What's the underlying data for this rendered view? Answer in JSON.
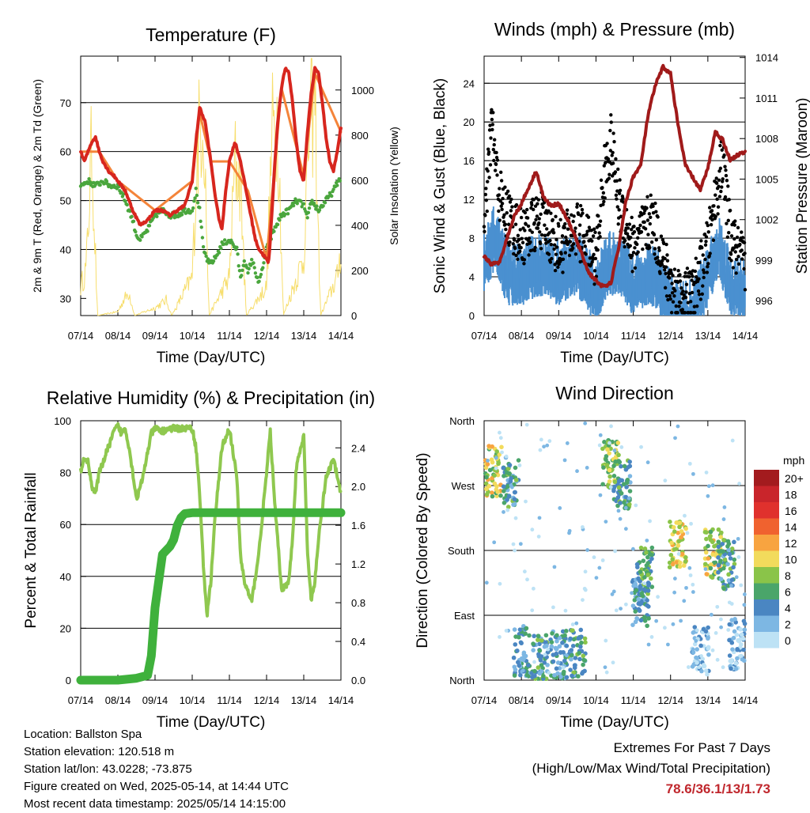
{
  "chart_data": [
    {
      "type": "line",
      "title": "Temperature (F)",
      "xlabel": "Time (Day/UTC)",
      "ylabel": "2m & 9m T (Red, Orange) & 2m Td (Green)",
      "ylabel_right": "Solar Insolation (Yellow)",
      "x_ticks": [
        "07/14",
        "08/14",
        "09/14",
        "10/14",
        "11/14",
        "12/14",
        "13/14",
        "14/14"
      ],
      "y_ticks": [
        30,
        40,
        50,
        60,
        70
      ],
      "y_right_ticks": [
        0,
        200,
        400,
        600,
        800,
        1000
      ],
      "ylim": [
        26.5,
        79.5
      ],
      "ylim_right": [
        0,
        1150
      ],
      "grid": true,
      "colors": {
        "temp": "#d7261e",
        "temp9m": "#f4843a",
        "dewpoint": "#4aa63d",
        "solar": "#f7de6d"
      },
      "series": [
        {
          "name": "2m T",
          "x": [
            0,
            0.1,
            0.2,
            0.3,
            0.4,
            0.5,
            0.6,
            0.75,
            0.9,
            1.0,
            1.2,
            1.4,
            1.6,
            1.8,
            2.0,
            2.2,
            2.4,
            2.6,
            2.8,
            3.0,
            3.1,
            3.2,
            3.35,
            3.5,
            3.6,
            3.7,
            3.8,
            3.9,
            4.0,
            4.15,
            4.3,
            4.4,
            4.5,
            4.6,
            4.7,
            4.8,
            4.9,
            5.0,
            5.05,
            5.1,
            5.2,
            5.3,
            5.4,
            5.5,
            5.6,
            5.7,
            5.8,
            5.9,
            6.0,
            6.1,
            6.2,
            6.3,
            6.4,
            6.5,
            6.6,
            6.7,
            6.8,
            6.9,
            7.0
          ],
          "y": [
            60,
            58,
            60,
            62,
            63,
            60,
            58,
            56,
            55,
            54,
            52,
            48,
            45,
            46,
            48,
            48,
            47,
            48,
            49,
            54,
            62,
            69,
            66,
            58,
            52,
            47,
            44,
            52,
            58,
            62,
            58,
            54,
            50,
            46,
            42,
            40,
            39,
            38,
            37,
            42,
            55,
            66,
            73,
            77,
            76,
            70,
            62,
            56,
            54,
            64,
            72,
            77,
            76,
            70,
            63,
            58,
            56,
            60,
            65
          ]
        },
        {
          "name": "9m T",
          "x": [
            0,
            0.5,
            1.0,
            2.0,
            3.0,
            3.2,
            3.5,
            4.0,
            4.5,
            5.0,
            5.4,
            6.0,
            6.3,
            7.0
          ],
          "y": [
            60,
            60,
            54,
            48,
            54,
            68,
            58,
            58,
            52,
            38,
            73,
            55,
            76,
            64
          ]
        },
        {
          "name": "2m Td",
          "x": [
            0,
            0.2,
            0.4,
            0.6,
            0.8,
            1.0,
            1.2,
            1.4,
            1.5,
            1.6,
            1.8,
            2.0,
            2.2,
            2.4,
            2.6,
            2.8,
            3.0,
            3.1,
            3.2,
            3.3,
            3.45,
            3.6,
            3.8,
            4.0,
            4.2,
            4.3,
            4.4,
            4.5,
            4.6,
            4.8,
            5.0,
            5.2,
            5.4,
            5.6,
            5.8,
            6.0,
            6.1,
            6.2,
            6.4,
            6.6,
            6.8,
            7.0
          ],
          "y": [
            53,
            54,
            53,
            54,
            53,
            53,
            50,
            46,
            43,
            42,
            44,
            47,
            48,
            47,
            47,
            48,
            48,
            52,
            48,
            40,
            37,
            38,
            41,
            42,
            40,
            34,
            38,
            35,
            38,
            33,
            40,
            44,
            47,
            48,
            50,
            49,
            46,
            50,
            48,
            50,
            52,
            55
          ]
        },
        {
          "name": "Solar",
          "axis": "right",
          "x": [
            0,
            0.15,
            0.3,
            0.45,
            1.0,
            1.15,
            1.3,
            1.45,
            2.0,
            2.15,
            2.3,
            2.45,
            3.0,
            3.15,
            3.3,
            3.45,
            4.0,
            4.15,
            4.3,
            4.45,
            5.0,
            5.15,
            5.3,
            5.45,
            6.0,
            6.15,
            6.3,
            6.45,
            6.9,
            7.0
          ],
          "y": [
            150,
            250,
            900,
            0,
            20,
            80,
            120,
            0,
            40,
            60,
            80,
            0,
            200,
            900,
            1100,
            0,
            200,
            800,
            700,
            0,
            150,
            950,
            1050,
            0,
            300,
            1000,
            1120,
            0,
            200,
            350
          ]
        }
      ]
    },
    {
      "type": "scatter",
      "title": "Winds (mph) & Pressure (mb)",
      "xlabel": "Time (Day/UTC)",
      "ylabel": "Sonic Wind & Gust (Blue, Black)",
      "ylabel_right": "Station Pressure (Maroon)",
      "x_ticks": [
        "07/14",
        "08/14",
        "09/14",
        "10/14",
        "11/14",
        "12/14",
        "13/14",
        "14/14"
      ],
      "y_ticks": [
        0,
        4,
        8,
        12,
        16,
        20,
        24
      ],
      "y_right_ticks": [
        996,
        999,
        1002,
        1005,
        1008,
        1011,
        1014
      ],
      "ylim": [
        0,
        26.8
      ],
      "ylim_right": [
        994.9,
        1014.1
      ],
      "grid": true,
      "colors": {
        "wind": "#4a90d0",
        "gust": "#000000",
        "pressure": "#a01a1a"
      },
      "series": [
        {
          "name": "Sonic Wind",
          "x": [
            0,
            0.3,
            0.6,
            1.0,
            1.5,
            2.0,
            2.5,
            3.0,
            3.3,
            3.6,
            4.0,
            4.5,
            5.0,
            5.3,
            5.6,
            6.0,
            6.3,
            6.6,
            7.0
          ],
          "y": [
            6,
            9,
            5,
            5,
            6,
            5,
            6,
            3,
            6,
            6,
            4,
            5,
            2,
            1,
            1,
            5,
            8,
            4,
            3
          ]
        },
        {
          "name": "Gust",
          "x": [
            0,
            0.2,
            0.35,
            0.5,
            1.0,
            1.5,
            2.0,
            2.5,
            3.0,
            3.2,
            3.4,
            3.6,
            4.0,
            4.5,
            5.0,
            5.3,
            5.6,
            6.0,
            6.2,
            6.4,
            6.6,
            7.0
          ],
          "y": [
            8,
            20,
            14,
            11,
            8,
            10,
            7,
            9,
            6,
            14,
            18,
            12,
            7,
            10,
            3,
            2,
            2,
            7,
            12,
            16,
            8,
            5
          ]
        },
        {
          "name": "Station Pressure",
          "axis": "right",
          "x": [
            0,
            0.2,
            0.4,
            0.6,
            0.8,
            1.0,
            1.2,
            1.4,
            1.6,
            1.8,
            2.0,
            2.2,
            2.4,
            2.6,
            2.8,
            3.0,
            3.2,
            3.4,
            3.6,
            3.8,
            4.0,
            4.2,
            4.4,
            4.6,
            4.8,
            5.0,
            5.2,
            5.4,
            5.6,
            5.8,
            6.0,
            6.2,
            6.4,
            6.6,
            6.8,
            7.0
          ],
          "y": [
            999.3,
            998.7,
            998.8,
            1000.5,
            1002.2,
            1003.2,
            1004.4,
            1005.6,
            1003.6,
            1003.0,
            1003.2,
            1002.2,
            1001.0,
            999.6,
            998.1,
            997.5,
            997.0,
            997.3,
            999.8,
            1003.3,
            1005.2,
            1006.0,
            1009.8,
            1012.0,
            1013.3,
            1012.8,
            1009.0,
            1006.0,
            1005.1,
            1004.2,
            1005.8,
            1008.5,
            1007.9,
            1006.4,
            1006.8,
            1007.0
          ]
        }
      ]
    },
    {
      "type": "line",
      "title": "Relative Humidity (%) & Precipitation (in)",
      "xlabel": "Time (Day/UTC)",
      "ylabel": "Percent & Total Rainfall",
      "x_ticks": [
        "07/14",
        "08/14",
        "09/14",
        "10/14",
        "11/14",
        "12/14",
        "13/14",
        "14/14"
      ],
      "y_ticks": [
        0,
        20,
        40,
        60,
        80,
        100
      ],
      "y_right_ticks": [
        "0.0",
        "0.4",
        "0.8",
        "1.2",
        "1.6",
        "2.0",
        "2.4"
      ],
      "ylim": [
        0,
        100
      ],
      "ylim_right": [
        0,
        2.68
      ],
      "grid": true,
      "colors": {
        "rh": "#8fc84f",
        "precip": "#3fb13c"
      },
      "series": [
        {
          "name": "Relative Humidity",
          "x": [
            0,
            0.1,
            0.2,
            0.3,
            0.4,
            0.5,
            0.7,
            0.9,
            1.0,
            1.1,
            1.2,
            1.3,
            1.4,
            1.5,
            1.6,
            1.7,
            1.8,
            1.9,
            2.0,
            2.2,
            2.4,
            2.6,
            2.8,
            3.0,
            3.1,
            3.2,
            3.3,
            3.4,
            3.5,
            3.6,
            3.8,
            4.0,
            4.2,
            4.3,
            4.4,
            4.6,
            4.8,
            5.0,
            5.1,
            5.2,
            5.4,
            5.6,
            5.7,
            5.8,
            6.0,
            6.1,
            6.2,
            6.3,
            6.4,
            6.6,
            6.8,
            7.0
          ],
          "y": [
            80,
            86,
            84,
            75,
            72,
            80,
            88,
            96,
            98,
            95,
            97,
            90,
            80,
            70,
            74,
            80,
            88,
            95,
            97,
            96,
            97,
            97,
            97,
            97,
            90,
            72,
            44,
            25,
            38,
            60,
            90,
            97,
            78,
            48,
            38,
            30,
            50,
            80,
            96,
            72,
            35,
            38,
            55,
            82,
            94,
            50,
            30,
            38,
            55,
            78,
            85,
            72
          ]
        },
        {
          "name": "Total Rainfall",
          "axis": "right",
          "x": [
            0,
            1.0,
            1.5,
            1.8,
            1.9,
            2.0,
            2.2,
            2.4,
            2.5,
            2.6,
            2.7,
            2.8,
            3.0,
            4.0,
            5.0,
            6.0,
            7.0
          ],
          "y": [
            0.0,
            0.0,
            0.02,
            0.05,
            0.25,
            0.75,
            1.3,
            1.38,
            1.45,
            1.6,
            1.68,
            1.72,
            1.73,
            1.73,
            1.73,
            1.73,
            1.73
          ]
        }
      ]
    },
    {
      "type": "scatter",
      "title": "Wind Direction",
      "xlabel": "Time (Day/UTC)",
      "ylabel": "Direction (Colored By Speed)",
      "x_ticks": [
        "07/14",
        "08/14",
        "09/14",
        "10/14",
        "11/14",
        "12/14",
        "13/14",
        "14/14"
      ],
      "y_ticks": [
        "North",
        "East",
        "South",
        "West",
        "North"
      ],
      "ylim": [
        0,
        360
      ],
      "grid": true,
      "legend": {
        "title": "mph",
        "placement": "right",
        "labels": [
          "20+",
          "18",
          "16",
          "14",
          "12",
          "10",
          "8",
          "6",
          "4",
          "2",
          "0"
        ],
        "colors": [
          "#a31b1e",
          "#c9252b",
          "#e0312d",
          "#f0622f",
          "#f8a440",
          "#f2db5c",
          "#8ac449",
          "#4aa56a",
          "#4a86c2",
          "#7db7e3",
          "#bde2f5"
        ]
      },
      "clusters": [
        {
          "x": 0.25,
          "dir": 290,
          "speed": 9
        },
        {
          "x": 0.7,
          "dir": 275,
          "speed": 5
        },
        {
          "x": 1.0,
          "dir": 40,
          "speed": 4
        },
        {
          "x": 1.5,
          "dir": 30,
          "speed": 5
        },
        {
          "x": 2.0,
          "dir": 35,
          "speed": 4
        },
        {
          "x": 2.5,
          "dir": 35,
          "speed": 5
        },
        {
          "x": 3.4,
          "dir": 300,
          "speed": 8
        },
        {
          "x": 3.7,
          "dir": 270,
          "speed": 5
        },
        {
          "x": 4.2,
          "dir": 110,
          "speed": 4
        },
        {
          "x": 4.3,
          "dir": 150,
          "speed": 6
        },
        {
          "x": 5.2,
          "dir": 185,
          "speed": 10
        },
        {
          "x": 5.8,
          "dir": 40,
          "speed": 2
        },
        {
          "x": 6.15,
          "dir": 175,
          "speed": 9
        },
        {
          "x": 6.5,
          "dir": 160,
          "speed": 5
        },
        {
          "x": 6.8,
          "dir": 50,
          "speed": 2
        }
      ]
    }
  ],
  "info": {
    "location": "Location: Ballston Spa",
    "elevation": "Station elevation: 120.518 m",
    "latlon": "Station lat/lon: 43.0228; -73.875",
    "created": "Figure created on Wed, 2025-05-14, at 14:44 UTC",
    "recent": "Most recent data timestamp: 2025/05/14 14:15:00"
  },
  "extremes": {
    "title": "Extremes For Past 7 Days",
    "subtitle": "(High/Low/Max Wind/Total Precipitation)",
    "values": "78.6/36.1/13/1.73"
  }
}
